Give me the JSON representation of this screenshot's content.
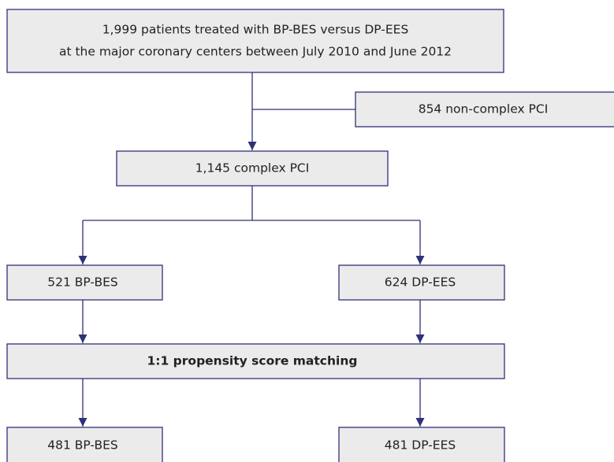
{
  "nodes": [
    {
      "lines": [
        "1,999 patients treated with BP-BES versus DP-EES",
        "at the major coronary centers between July 2010 and June 2012"
      ]
    },
    {
      "lines": [
        "854 non-complex PCI"
      ]
    },
    {
      "lines": [
        "1,145 complex PCI"
      ]
    },
    {
      "lines": [
        "521 BP-BES"
      ]
    },
    {
      "lines": [
        "624 DP-EES"
      ]
    },
    {
      "lines": [
        "1:1 propensity score matching"
      ]
    },
    {
      "lines": [
        "481 BP-BES"
      ]
    },
    {
      "lines": [
        "481 DP-EES"
      ]
    }
  ]
}
